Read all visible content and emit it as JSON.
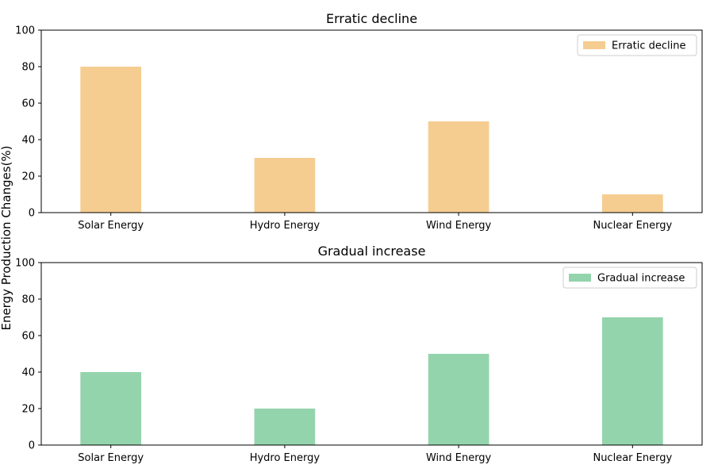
{
  "chart_data": [
    {
      "type": "bar",
      "title": "Erratic decline",
      "categories": [
        "Solar Energy",
        "Hydro Energy",
        "Wind Energy",
        "Nuclear Energy"
      ],
      "series": [
        {
          "name": "Erratic decline",
          "values": [
            80,
            30,
            50,
            10
          ],
          "color": "#f5cd91"
        }
      ],
      "ylim": [
        0,
        100
      ],
      "yticks": [
        0,
        20,
        40,
        60,
        80,
        100
      ],
      "grid": false,
      "legend_position": "top-right"
    },
    {
      "type": "bar",
      "title": "Gradual increase",
      "categories": [
        "Solar Energy",
        "Hydro Energy",
        "Wind Energy",
        "Nuclear Energy"
      ],
      "series": [
        {
          "name": "Gradual increase",
          "values": [
            40,
            20,
            50,
            70
          ],
          "color": "#94d4ad"
        }
      ],
      "ylim": [
        0,
        100
      ],
      "yticks": [
        0,
        20,
        40,
        60,
        80,
        100
      ],
      "grid": false,
      "legend_position": "top-right"
    }
  ],
  "shared_ylabel": "Energy Production Changes(%)"
}
